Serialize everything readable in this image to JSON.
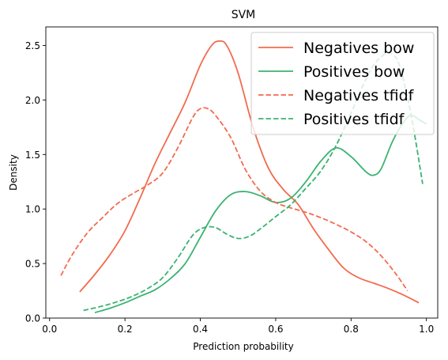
{
  "chart_data": {
    "type": "line",
    "title": "SVM",
    "xlabel": "Prediction probability",
    "ylabel": "Density",
    "xlim": [
      -0.01,
      1.03
    ],
    "ylim": [
      0.0,
      2.67
    ],
    "xticks": [
      0.0,
      0.2,
      0.4,
      0.6,
      0.8,
      1.0
    ],
    "xtick_labels": [
      "0.0",
      "0.2",
      "0.4",
      "0.6",
      "0.8",
      "1.0"
    ],
    "yticks": [
      0.0,
      0.5,
      1.0,
      1.5,
      2.0,
      2.5
    ],
    "ytick_labels": [
      "0.0",
      "0.5",
      "1.0",
      "1.5",
      "2.0",
      "2.5"
    ],
    "grid": false,
    "legend_position": "top-right",
    "series": [
      {
        "name": "Negatives bow",
        "color": "#f26b4e",
        "dash": "solid",
        "points": [
          [
            0.08,
            0.24
          ],
          [
            0.12,
            0.4
          ],
          [
            0.16,
            0.58
          ],
          [
            0.2,
            0.8
          ],
          [
            0.24,
            1.1
          ],
          [
            0.28,
            1.42
          ],
          [
            0.32,
            1.7
          ],
          [
            0.36,
            1.98
          ],
          [
            0.4,
            2.32
          ],
          [
            0.43,
            2.5
          ],
          [
            0.45,
            2.54
          ],
          [
            0.47,
            2.5
          ],
          [
            0.5,
            2.25
          ],
          [
            0.54,
            1.75
          ],
          [
            0.58,
            1.38
          ],
          [
            0.62,
            1.18
          ],
          [
            0.66,
            1.04
          ],
          [
            0.7,
            0.82
          ],
          [
            0.74,
            0.63
          ],
          [
            0.78,
            0.46
          ],
          [
            0.82,
            0.37
          ],
          [
            0.86,
            0.32
          ],
          [
            0.9,
            0.27
          ],
          [
            0.94,
            0.21
          ],
          [
            0.98,
            0.14
          ]
        ]
      },
      {
        "name": "Positives bow",
        "color": "#3cb371",
        "dash": "solid",
        "points": [
          [
            0.12,
            0.05
          ],
          [
            0.16,
            0.09
          ],
          [
            0.2,
            0.14
          ],
          [
            0.24,
            0.2
          ],
          [
            0.28,
            0.26
          ],
          [
            0.32,
            0.36
          ],
          [
            0.36,
            0.5
          ],
          [
            0.4,
            0.74
          ],
          [
            0.44,
            0.98
          ],
          [
            0.48,
            1.13
          ],
          [
            0.52,
            1.16
          ],
          [
            0.56,
            1.12
          ],
          [
            0.6,
            1.06
          ],
          [
            0.64,
            1.1
          ],
          [
            0.68,
            1.25
          ],
          [
            0.72,
            1.44
          ],
          [
            0.76,
            1.56
          ],
          [
            0.8,
            1.48
          ],
          [
            0.84,
            1.34
          ],
          [
            0.86,
            1.31
          ],
          [
            0.88,
            1.37
          ],
          [
            0.91,
            1.62
          ],
          [
            0.94,
            1.8
          ],
          [
            0.96,
            1.86
          ],
          [
            0.98,
            1.82
          ],
          [
            1.0,
            1.78
          ]
        ]
      },
      {
        "name": "Negatives tfidf",
        "color": "#f26b4e",
        "dash": "dashed",
        "points": [
          [
            0.03,
            0.39
          ],
          [
            0.06,
            0.58
          ],
          [
            0.1,
            0.78
          ],
          [
            0.14,
            0.92
          ],
          [
            0.18,
            1.05
          ],
          [
            0.22,
            1.14
          ],
          [
            0.26,
            1.22
          ],
          [
            0.3,
            1.33
          ],
          [
            0.34,
            1.56
          ],
          [
            0.38,
            1.84
          ],
          [
            0.4,
            1.92
          ],
          [
            0.42,
            1.92
          ],
          [
            0.44,
            1.86
          ],
          [
            0.48,
            1.66
          ],
          [
            0.52,
            1.36
          ],
          [
            0.56,
            1.16
          ],
          [
            0.6,
            1.06
          ],
          [
            0.64,
            1.01
          ],
          [
            0.68,
            0.97
          ],
          [
            0.72,
            0.92
          ],
          [
            0.76,
            0.86
          ],
          [
            0.8,
            0.79
          ],
          [
            0.84,
            0.7
          ],
          [
            0.88,
            0.57
          ],
          [
            0.92,
            0.4
          ],
          [
            0.95,
            0.25
          ]
        ]
      },
      {
        "name": "Positives tfidf",
        "color": "#3cb371",
        "dash": "dashed",
        "points": [
          [
            0.09,
            0.07
          ],
          [
            0.14,
            0.11
          ],
          [
            0.18,
            0.15
          ],
          [
            0.22,
            0.2
          ],
          [
            0.26,
            0.27
          ],
          [
            0.3,
            0.37
          ],
          [
            0.34,
            0.55
          ],
          [
            0.38,
            0.76
          ],
          [
            0.41,
            0.83
          ],
          [
            0.44,
            0.83
          ],
          [
            0.47,
            0.77
          ],
          [
            0.5,
            0.73
          ],
          [
            0.53,
            0.75
          ],
          [
            0.56,
            0.82
          ],
          [
            0.6,
            0.93
          ],
          [
            0.64,
            1.04
          ],
          [
            0.68,
            1.19
          ],
          [
            0.72,
            1.35
          ],
          [
            0.76,
            1.58
          ],
          [
            0.8,
            1.88
          ],
          [
            0.83,
            2.12
          ],
          [
            0.86,
            2.32
          ],
          [
            0.89,
            2.42
          ],
          [
            0.91,
            2.42
          ],
          [
            0.93,
            2.3
          ],
          [
            0.96,
            1.85
          ],
          [
            0.99,
            1.23
          ]
        ]
      }
    ]
  }
}
